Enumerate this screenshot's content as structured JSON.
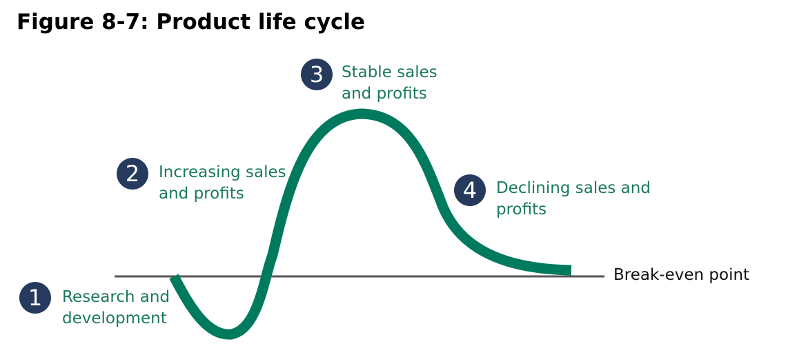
{
  "title": "Figure 8-7: Product life cycle",
  "baseline_label": "Break-even point",
  "colors": {
    "curve": "#007a5e",
    "label_text": "#1a7a5a",
    "badge_fill": "#263a5e",
    "baseline": "#555555"
  },
  "stages": [
    {
      "number": "1",
      "line1": "Research and",
      "line2": "development"
    },
    {
      "number": "2",
      "line1": "Increasing sales",
      "line2": "and profits"
    },
    {
      "number": "3",
      "line1": "Stable sales",
      "line2": "and profits"
    },
    {
      "number": "4",
      "line1": "Declining sales and",
      "line2": "profits"
    }
  ]
}
